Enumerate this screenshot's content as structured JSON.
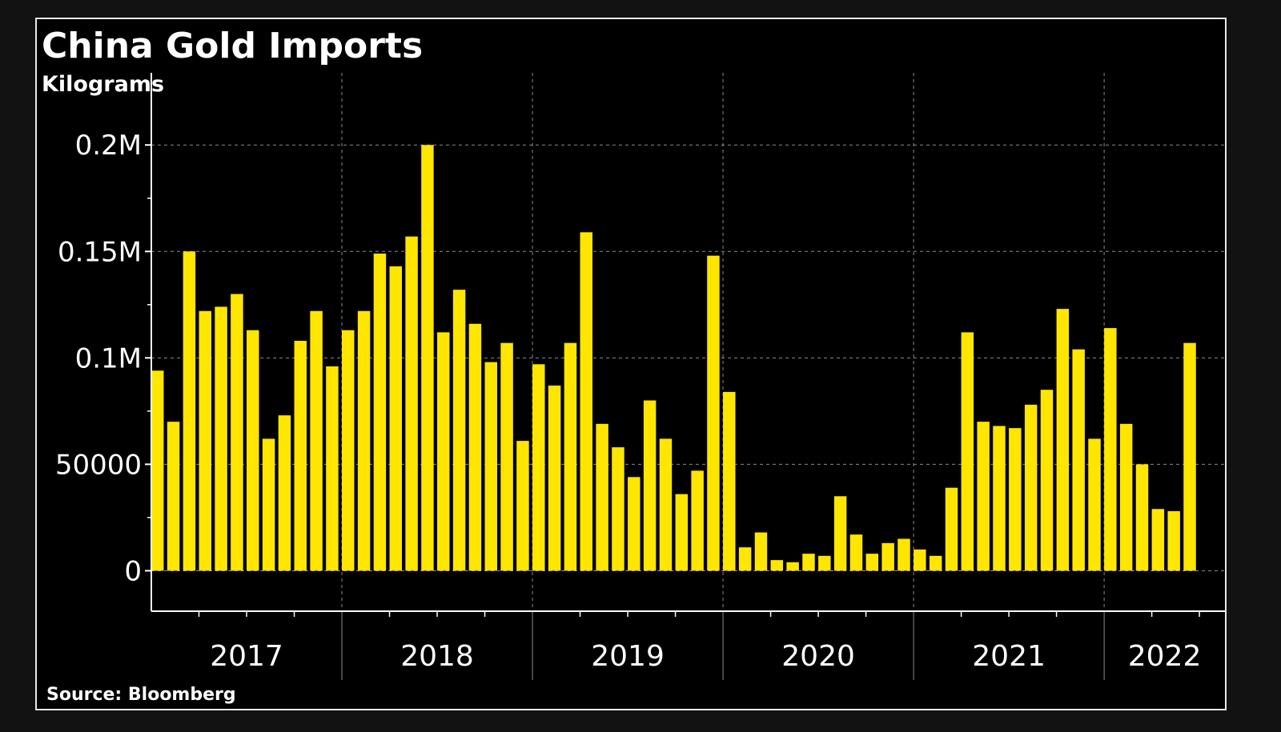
{
  "chart_data": {
    "type": "bar",
    "title": "China Gold Imports",
    "subtitle": "Kilograms",
    "source": "Source: Bloomberg",
    "xlabel": "",
    "ylabel": "",
    "ylim": [
      -19000,
      217000
    ],
    "yticks": [
      {
        "value": 0,
        "label": "0"
      },
      {
        "value": 50000,
        "label": "50000"
      },
      {
        "value": 100000,
        "label": "0.1M"
      },
      {
        "value": 150000,
        "label": "0.15M"
      },
      {
        "value": 200000,
        "label": "0.2M"
      }
    ],
    "year_labels": [
      "2017",
      "2018",
      "2019",
      "2020",
      "2021",
      "2022"
    ],
    "start": "2017-01",
    "values": [
      94000,
      70000,
      150000,
      122000,
      124000,
      130000,
      113000,
      62000,
      73000,
      108000,
      122000,
      96000,
      113000,
      122000,
      149000,
      143000,
      157000,
      200000,
      112000,
      132000,
      116000,
      98000,
      107000,
      61000,
      97000,
      87000,
      107000,
      159000,
      69000,
      58000,
      44000,
      80000,
      62000,
      36000,
      47000,
      148000,
      84000,
      11000,
      18000,
      5000,
      4000,
      8000,
      7000,
      35000,
      17000,
      8000,
      13000,
      15000,
      10000,
      7000,
      39000,
      112000,
      70000,
      68000,
      67000,
      78000,
      85000,
      123000,
      104000,
      62000,
      114000,
      69000,
      50000,
      29000,
      28000,
      107000
    ],
    "colors": {
      "bar": "#ffe600",
      "background": "#000000",
      "text": "#ffffff",
      "grid": "#8a8a8a",
      "axis": "#ffffff"
    },
    "grid": true,
    "legend": "none"
  }
}
